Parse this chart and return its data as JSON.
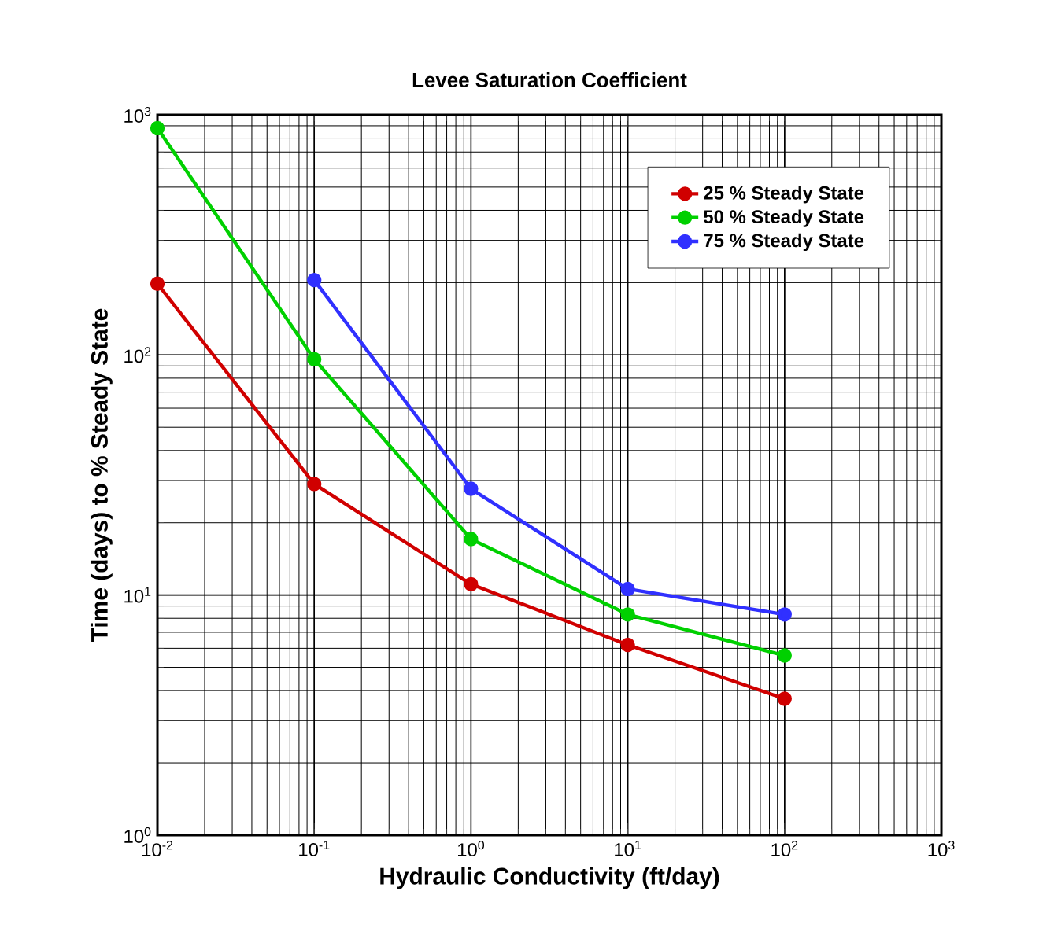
{
  "chart_data": {
    "type": "line",
    "title": "Levee Saturation Coefficient",
    "xlabel": "Hydraulic Conductivity (ft/day)",
    "ylabel": "Time (days) to % Steady State",
    "log": "xy",
    "grid": true,
    "legend": "top right",
    "marker": "circle",
    "line_style": "solid",
    "xlim": [
      0.01,
      1000
    ],
    "ylim": [
      1,
      1000
    ],
    "xticks": [
      {
        "value": 0.01,
        "label": "10$^{-2}$"
      },
      {
        "value": 0.1,
        "label": "10$^{-1}$"
      },
      {
        "value": 1,
        "label": "10$^{0}$"
      },
      {
        "value": 10,
        "label": "10$^{1}$"
      },
      {
        "value": 100,
        "label": "10$^{2}$"
      },
      {
        "value": 1000,
        "label": "10$^{3}$"
      }
    ],
    "yticks": [
      {
        "value": 1,
        "label": "10$^{0}$"
      },
      {
        "value": 10,
        "label": "10$^{1}$"
      },
      {
        "value": 100,
        "label": "10$^{2}$"
      },
      {
        "value": 1000,
        "label": "10$^{3}$"
      }
    ],
    "series": [
      {
        "name": "25 % Steady State",
        "color": "#d00000",
        "x": [
          0.01,
          0.1,
          1,
          10,
          100
        ],
        "values": [
          198,
          29,
          11.1,
          6.2,
          3.7
        ]
      },
      {
        "name": "50 % Steady State",
        "color": "#00d000",
        "x": [
          0.01,
          0.1,
          1,
          10,
          100
        ],
        "values": [
          880,
          96,
          17.1,
          8.3,
          5.6
        ]
      },
      {
        "name": "75 % Steady State",
        "color": "#3030ff",
        "x": [
          0.1,
          1,
          10,
          100
        ],
        "values": [
          205,
          27.7,
          10.6,
          8.3
        ]
      }
    ]
  }
}
